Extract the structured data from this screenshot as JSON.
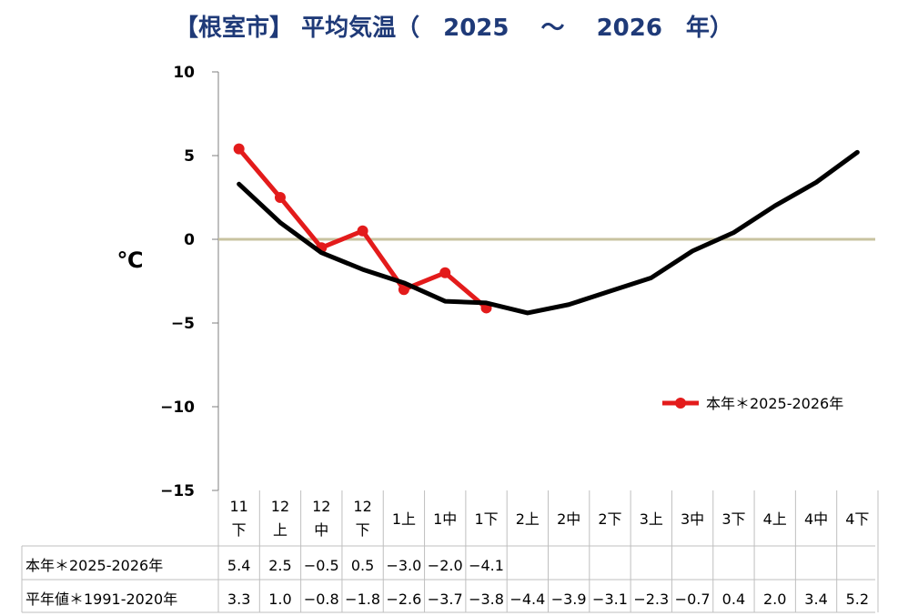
{
  "title": "【根室市】 平均気温（　2025　 ～　 2026　年）",
  "chart_data": {
    "type": "line",
    "title": "【根室市】 平均気温（　2025　 ～　 2026　年）",
    "ylabel": "℃",
    "ylim": [
      -15,
      10
    ],
    "yticks": [
      10,
      5,
      0,
      -5,
      -10,
      -15
    ],
    "ytick_labels": [
      "10",
      "5",
      "0",
      "−5",
      "−10",
      "−15"
    ],
    "categories": [
      [
        "11",
        "下"
      ],
      [
        "12",
        "上"
      ],
      [
        "12",
        "中"
      ],
      [
        "12",
        "下"
      ],
      [
        "1上"
      ],
      [
        "1中"
      ],
      [
        "1下"
      ],
      [
        "2上"
      ],
      [
        "2中"
      ],
      [
        "2下"
      ],
      [
        "3上"
      ],
      [
        "3中"
      ],
      [
        "3下"
      ],
      [
        "4上"
      ],
      [
        "4中"
      ],
      [
        "4下"
      ]
    ],
    "series": [
      {
        "name": "本年＊2025-2026年",
        "color": "#e31b1b",
        "values": [
          5.4,
          2.5,
          -0.5,
          0.5,
          -3.0,
          -2.0,
          -4.1,
          null,
          null,
          null,
          null,
          null,
          null,
          null,
          null,
          null
        ],
        "labels": [
          "5.4",
          "2.5",
          "−0.5",
          "0.5",
          "−3.0",
          "−2.0",
          "−4.1",
          "",
          "",
          "",
          "",
          "",
          "",
          "",
          "",
          ""
        ]
      },
      {
        "name": "平年値＊1991-2020年",
        "color": "#000000",
        "values": [
          3.3,
          1.0,
          -0.8,
          -1.8,
          -2.6,
          -3.7,
          -3.8,
          -4.4,
          -3.9,
          -3.1,
          -2.3,
          -0.7,
          0.4,
          2.0,
          3.4,
          5.2
        ],
        "labels": [
          "3.3",
          "1.0",
          "−0.8",
          "−1.8",
          "−2.6",
          "−3.7",
          "−3.8",
          "−4.4",
          "−3.9",
          "−3.1",
          "−2.3",
          "−0.7",
          "0.4",
          "2.0",
          "3.4",
          "5.2"
        ]
      }
    ],
    "zero_line_color": "#c8c3a0",
    "legend": {
      "label": "本年＊2025-2026年",
      "position": "right"
    }
  }
}
